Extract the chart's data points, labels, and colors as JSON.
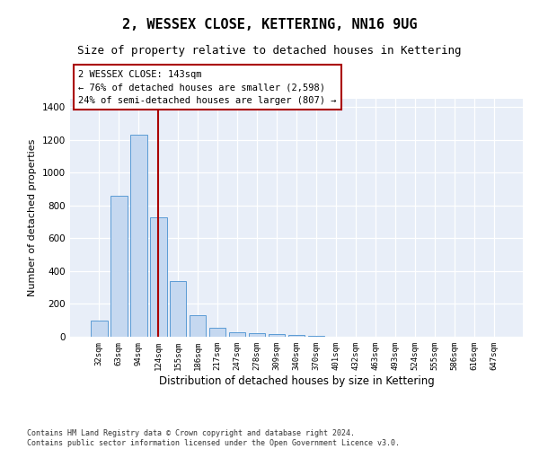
{
  "title": "2, WESSEX CLOSE, KETTERING, NN16 9UG",
  "subtitle": "Size of property relative to detached houses in Kettering",
  "xlabel": "Distribution of detached houses by size in Kettering",
  "ylabel": "Number of detached properties",
  "categories": [
    "32sqm",
    "63sqm",
    "94sqm",
    "124sqm",
    "155sqm",
    "186sqm",
    "217sqm",
    "247sqm",
    "278sqm",
    "309sqm",
    "340sqm",
    "370sqm",
    "401sqm",
    "432sqm",
    "463sqm",
    "493sqm",
    "524sqm",
    "555sqm",
    "586sqm",
    "616sqm",
    "647sqm"
  ],
  "values": [
    100,
    860,
    1230,
    730,
    340,
    130,
    55,
    30,
    20,
    15,
    10,
    5,
    0,
    0,
    0,
    0,
    0,
    0,
    0,
    0,
    0
  ],
  "bar_color": "#c5d8f0",
  "bar_edge_color": "#5b9bd5",
  "vline_color": "#aa0000",
  "annotation_box_text": "2 WESSEX CLOSE: 143sqm\n← 76% of detached houses are smaller (2,598)\n24% of semi-detached houses are larger (807) →",
  "ylim": [
    0,
    1450
  ],
  "yticks": [
    0,
    200,
    400,
    600,
    800,
    1000,
    1200,
    1400
  ],
  "bg_color": "#e8eef8",
  "footer": "Contains HM Land Registry data © Crown copyright and database right 2024.\nContains public sector information licensed under the Open Government Licence v3.0.",
  "title_fontsize": 11,
  "subtitle_fontsize": 9,
  "xlabel_fontsize": 8.5,
  "ylabel_fontsize": 8,
  "vline_pos": 3.0
}
